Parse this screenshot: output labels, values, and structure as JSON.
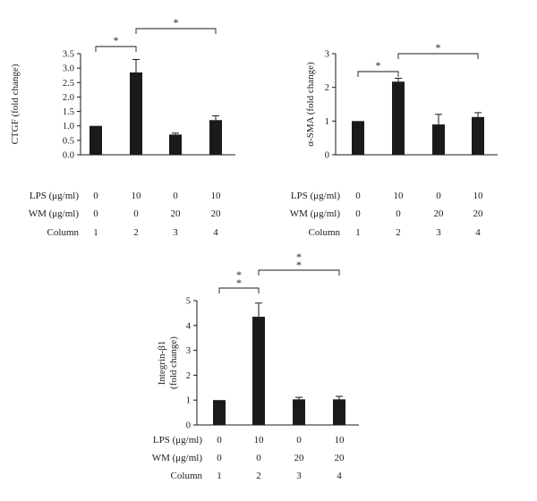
{
  "chart_data": [
    {
      "type": "bar",
      "ylabel": "CTGF (fold change)",
      "ylim": [
        0,
        3.5
      ],
      "yticks": [
        "0.0",
        "0.5",
        "1.0",
        "1.5",
        "2.0",
        "2.5",
        "3.0",
        "3.5"
      ],
      "categories": [
        "1",
        "2",
        "3",
        "4"
      ],
      "values": [
        1.0,
        2.85,
        0.7,
        1.2
      ],
      "errors": [
        0,
        0.45,
        0.05,
        0.15
      ],
      "row_labels": [
        "LPS (μg/ml)",
        "WM (μg/ml)",
        "Column"
      ],
      "row_values": [
        [
          "0",
          "10",
          "0",
          "10"
        ],
        [
          "0",
          "0",
          "20",
          "20"
        ],
        [
          "1",
          "2",
          "3",
          "4"
        ]
      ],
      "significance": [
        {
          "from": "1",
          "to": "2",
          "mark": "*"
        },
        {
          "from": "2",
          "to": "4",
          "mark": "*"
        }
      ]
    },
    {
      "type": "bar",
      "ylabel": "α-SMA (fold change)",
      "ylim": [
        0,
        3
      ],
      "yticks": [
        "0",
        "1",
        "2",
        "3"
      ],
      "categories": [
        "1",
        "2",
        "3",
        "4"
      ],
      "values": [
        1.0,
        2.17,
        0.9,
        1.12
      ],
      "errors": [
        0,
        0.1,
        0.3,
        0.13
      ],
      "row_labels": [
        "LPS (μg/ml)",
        "WM (μg/ml)",
        "Column"
      ],
      "row_values": [
        [
          "0",
          "10",
          "0",
          "10"
        ],
        [
          "0",
          "0",
          "20",
          "20"
        ],
        [
          "1",
          "2",
          "3",
          "4"
        ]
      ],
      "significance": [
        {
          "from": "1",
          "to": "2",
          "mark": "*"
        },
        {
          "from": "2",
          "to": "4",
          "mark": "*"
        }
      ]
    },
    {
      "type": "bar",
      "ylabel": "Integrin-β1 (fold change)",
      "ylim": [
        0,
        5
      ],
      "yticks": [
        "0",
        "1",
        "2",
        "3",
        "4",
        "5"
      ],
      "categories": [
        "1",
        "2",
        "3",
        "4"
      ],
      "values": [
        1.0,
        4.35,
        1.03,
        1.03
      ],
      "errors": [
        0,
        0.55,
        0.08,
        0.12
      ],
      "row_labels": [
        "LPS (μg/ml)",
        "WM (μg/ml)",
        "Column"
      ],
      "row_values": [
        [
          "0",
          "10",
          "0",
          "10"
        ],
        [
          "0",
          "0",
          "20",
          "20"
        ],
        [
          "1",
          "2",
          "3",
          "4"
        ]
      ],
      "significance": [
        {
          "from": "1",
          "to": "2",
          "mark": "**"
        },
        {
          "from": "2",
          "to": "4",
          "mark": "**"
        }
      ]
    }
  ]
}
